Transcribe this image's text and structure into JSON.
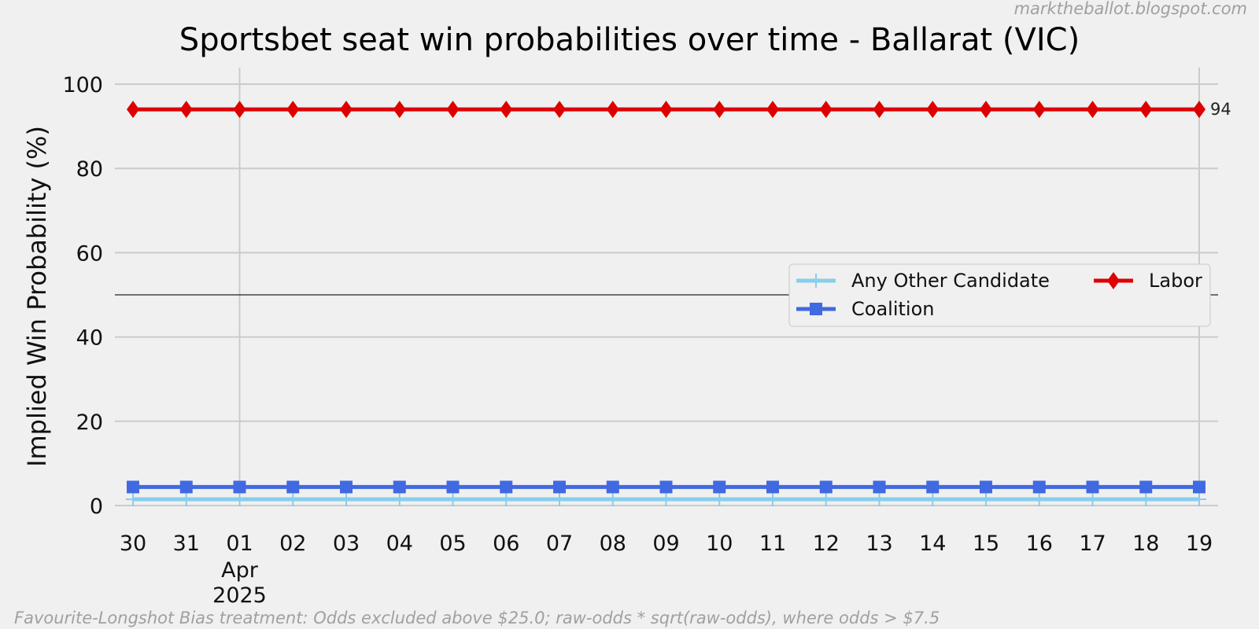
{
  "watermark": "marktheballot.blogspot.com",
  "footnote": "Favourite-Longshot Bias treatment: Odds excluded above $25.0; raw-odds * sqrt(raw-odds), where odds > $7.5",
  "chart_data": {
    "type": "line",
    "title": "Sportsbet seat win probabilities over time - Ballarat (VIC)",
    "xlabel": "",
    "ylabel": "Implied Win Probability (%)",
    "ylim": [
      0,
      100
    ],
    "yticks": [
      "0",
      "20",
      "40",
      "60",
      "80",
      "100"
    ],
    "x": [
      "30",
      "31",
      "01",
      "02",
      "03",
      "04",
      "05",
      "06",
      "07",
      "08",
      "09",
      "10",
      "11",
      "12",
      "13",
      "14",
      "15",
      "16",
      "17",
      "18",
      "19"
    ],
    "x_dates": [
      "2025-03-30",
      "2025-03-31",
      "2025-04-01",
      "2025-04-02",
      "2025-04-03",
      "2025-04-04",
      "2025-04-05",
      "2025-04-06",
      "2025-04-07",
      "2025-04-08",
      "2025-04-09",
      "2025-04-10",
      "2025-04-11",
      "2025-04-12",
      "2025-04-13",
      "2025-04-14",
      "2025-04-15",
      "2025-04-16",
      "2025-04-17",
      "2025-04-18",
      "2025-04-19"
    ],
    "x_sublabel": {
      "month": "Apr",
      "year": "2025"
    },
    "reference_line_y": 50,
    "grid": true,
    "legend_position": "center-right",
    "series": [
      {
        "name": "Any Other Candidate",
        "color": "#87ceeb",
        "marker": "plus",
        "values": [
          1.5,
          1.5,
          1.5,
          1.5,
          1.5,
          1.5,
          1.5,
          1.5,
          1.5,
          1.5,
          1.5,
          1.5,
          1.5,
          1.5,
          1.5,
          1.5,
          1.5,
          1.5,
          1.5,
          1.5,
          1.5
        ]
      },
      {
        "name": "Coalition",
        "color": "#4169e1",
        "marker": "square",
        "values": [
          4.4,
          4.4,
          4.4,
          4.4,
          4.4,
          4.4,
          4.4,
          4.4,
          4.4,
          4.4,
          4.4,
          4.4,
          4.4,
          4.4,
          4.4,
          4.4,
          4.4,
          4.4,
          4.4,
          4.4,
          4.4
        ]
      },
      {
        "name": "Labor",
        "color": "#dd0000",
        "marker": "diamond",
        "values": [
          94,
          94,
          94,
          94,
          94,
          94,
          94,
          94,
          94,
          94,
          94,
          94,
          94,
          94,
          94,
          94,
          94,
          94,
          94,
          94,
          94
        ]
      }
    ],
    "end_label": "94"
  }
}
